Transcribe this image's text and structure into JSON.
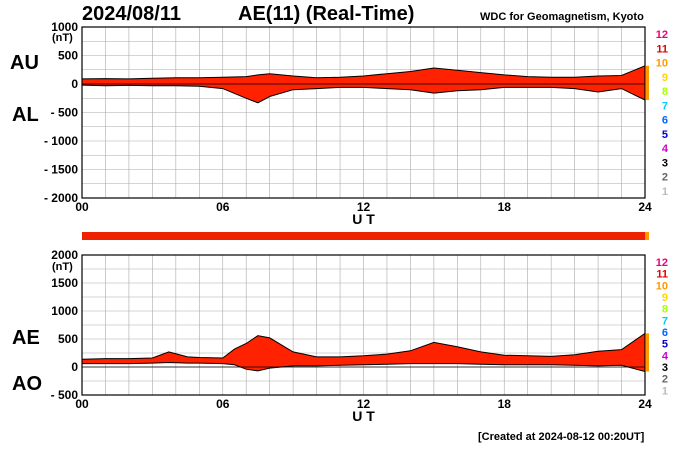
{
  "header": {
    "date": "2024/08/11",
    "title": "AE(11) (Real-Time)",
    "source": "WDC for Geomagnetism, Kyoto"
  },
  "footer": {
    "created": "[Created at 2024-08-12 00:20UT]"
  },
  "station_counts": {
    "labels": [
      "12",
      "11",
      "10",
      "9",
      "8",
      "7",
      "6",
      "5",
      "4",
      "3",
      "2",
      "1"
    ],
    "colors": [
      "#e8007a",
      "#e00000",
      "#ff9900",
      "#ffd700",
      "#aaff00",
      "#00ccff",
      "#0066ff",
      "#0000cc",
      "#cc00cc",
      "#000000",
      "#666666",
      "#bbbbbb"
    ]
  },
  "colors": {
    "fill": "#ff2200",
    "line": "#000000",
    "grid": "#aaaaaa",
    "bar": "#ee2200",
    "bar_end": "#ff9900"
  },
  "chart_data": [
    {
      "type": "area",
      "labels": {
        "upper": "AU",
        "lower": "AL",
        "unit": "(nT)",
        "xlabel": "U T"
      },
      "ylim": [
        -2000,
        1000
      ],
      "yticks": [
        "1000",
        "500",
        "0",
        "- 500",
        "- 1000",
        "- 1500",
        "- 2000"
      ],
      "xlim": [
        0,
        24
      ],
      "xticks": [
        "00",
        "06",
        "12",
        "18",
        "24"
      ],
      "grid": true,
      "series": [
        {
          "x": [
            0,
            1,
            2,
            3,
            4,
            5,
            6,
            7,
            7.5,
            8,
            9,
            10,
            11,
            12,
            13,
            14,
            15,
            16,
            17,
            18,
            19,
            20,
            21,
            22,
            23,
            24
          ],
          "values": [
            90,
            95,
            90,
            100,
            110,
            110,
            120,
            130,
            160,
            180,
            140,
            110,
            120,
            140,
            180,
            220,
            280,
            240,
            200,
            160,
            130,
            120,
            120,
            140,
            150,
            320
          ]
        },
        {
          "x": [
            0,
            1,
            2,
            3,
            4,
            5,
            6,
            7,
            7.5,
            8,
            9,
            10,
            11,
            12,
            13,
            14,
            15,
            16,
            17,
            18,
            19,
            20,
            21,
            22,
            23,
            24
          ],
          "values": [
            -20,
            -30,
            -25,
            -30,
            -30,
            -40,
            -80,
            -250,
            -330,
            -220,
            -100,
            -80,
            -60,
            -60,
            -80,
            -100,
            -160,
            -120,
            -100,
            -60,
            -60,
            -60,
            -80,
            -140,
            -80,
            -280
          ]
        }
      ]
    },
    {
      "type": "area",
      "labels": {
        "upper": "AE",
        "lower": "AO",
        "unit": "(nT)",
        "xlabel": "U T"
      },
      "ylim": [
        -500,
        2000
      ],
      "yticks": [
        "2000",
        "1500",
        "1000",
        "500",
        "0",
        "- 500"
      ],
      "xlim": [
        0,
        24
      ],
      "xticks": [
        "00",
        "06",
        "12",
        "18",
        "24"
      ],
      "grid": true,
      "series": [
        {
          "x": [
            0,
            1,
            2,
            3,
            3.7,
            4.5,
            5,
            6,
            6.5,
            7,
            7.5,
            8,
            9,
            10,
            11,
            12,
            13,
            14,
            15,
            16,
            17,
            18,
            19,
            20,
            21,
            22,
            23,
            24
          ],
          "values": [
            140,
            150,
            150,
            160,
            270,
            180,
            170,
            160,
            320,
            420,
            560,
            520,
            270,
            180,
            180,
            200,
            230,
            290,
            440,
            360,
            270,
            210,
            200,
            190,
            220,
            280,
            310,
            600
          ]
        },
        {
          "x": [
            0,
            1,
            2,
            3,
            3.7,
            4.5,
            5,
            6,
            6.5,
            7,
            7.5,
            8,
            9,
            10,
            11,
            12,
            13,
            14,
            15,
            16,
            17,
            18,
            19,
            20,
            21,
            22,
            23,
            24
          ],
          "values": [
            60,
            60,
            60,
            70,
            80,
            70,
            70,
            60,
            40,
            -40,
            -70,
            -20,
            20,
            20,
            30,
            40,
            50,
            60,
            60,
            60,
            50,
            40,
            40,
            40,
            30,
            20,
            30,
            -80
          ]
        }
      ]
    }
  ]
}
